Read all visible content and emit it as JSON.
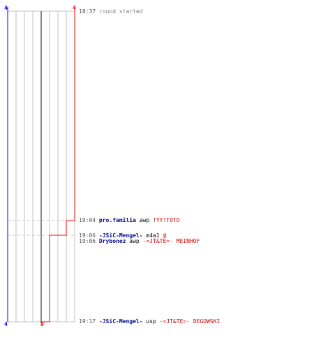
{
  "colors": {
    "team_blue": "#0000ff",
    "team_red": "#ff0000",
    "grid": "#c0c0c0",
    "center": "#808080",
    "guide": "#c8c8c8"
  },
  "score_labels": {
    "blue_top": "4",
    "red_top": "4",
    "blue_bottom": "4",
    "red_bottom": "0"
  },
  "events": [
    {
      "time": "18:37",
      "text": "round started",
      "subject": "",
      "verb": "",
      "object": "",
      "suffix": ""
    },
    {
      "time": "19:04",
      "subject": "pro.familia",
      "verb": "awp",
      "object": "!YY!TOTO",
      "suffix": "",
      "text": ""
    },
    {
      "time": "19:06",
      "subject": "-JSiC-Mengel-",
      "verb": "m4a1",
      "object": "",
      "suffix": "@",
      "text": ""
    },
    {
      "time": "19:06",
      "subject": "Drybonez",
      "verb": "awp",
      "object": "-=JT&TE=- MEINHOF",
      "suffix": "",
      "text": ""
    },
    {
      "time": "19:17",
      "subject": "-JSiC-Mengel-",
      "verb": "usp",
      "object": "-=JT&TE=- DEGOWSKI",
      "suffix": "",
      "text": ""
    }
  ],
  "chart_data": {
    "type": "line",
    "title": "",
    "series": [
      {
        "color": "#0000ff",
        "points": [
          [
            18.37,
            4
          ],
          [
            19.17,
            4
          ]
        ]
      },
      {
        "color": "#ff0000",
        "points": [
          [
            18.37,
            4
          ],
          [
            19.04,
            4
          ],
          [
            19.04,
            3
          ],
          [
            19.06,
            3
          ],
          [
            19.06,
            2
          ],
          [
            19.17,
            2
          ],
          [
            19.17,
            0
          ]
        ]
      }
    ],
    "ylim": [
      0,
      4
    ]
  }
}
